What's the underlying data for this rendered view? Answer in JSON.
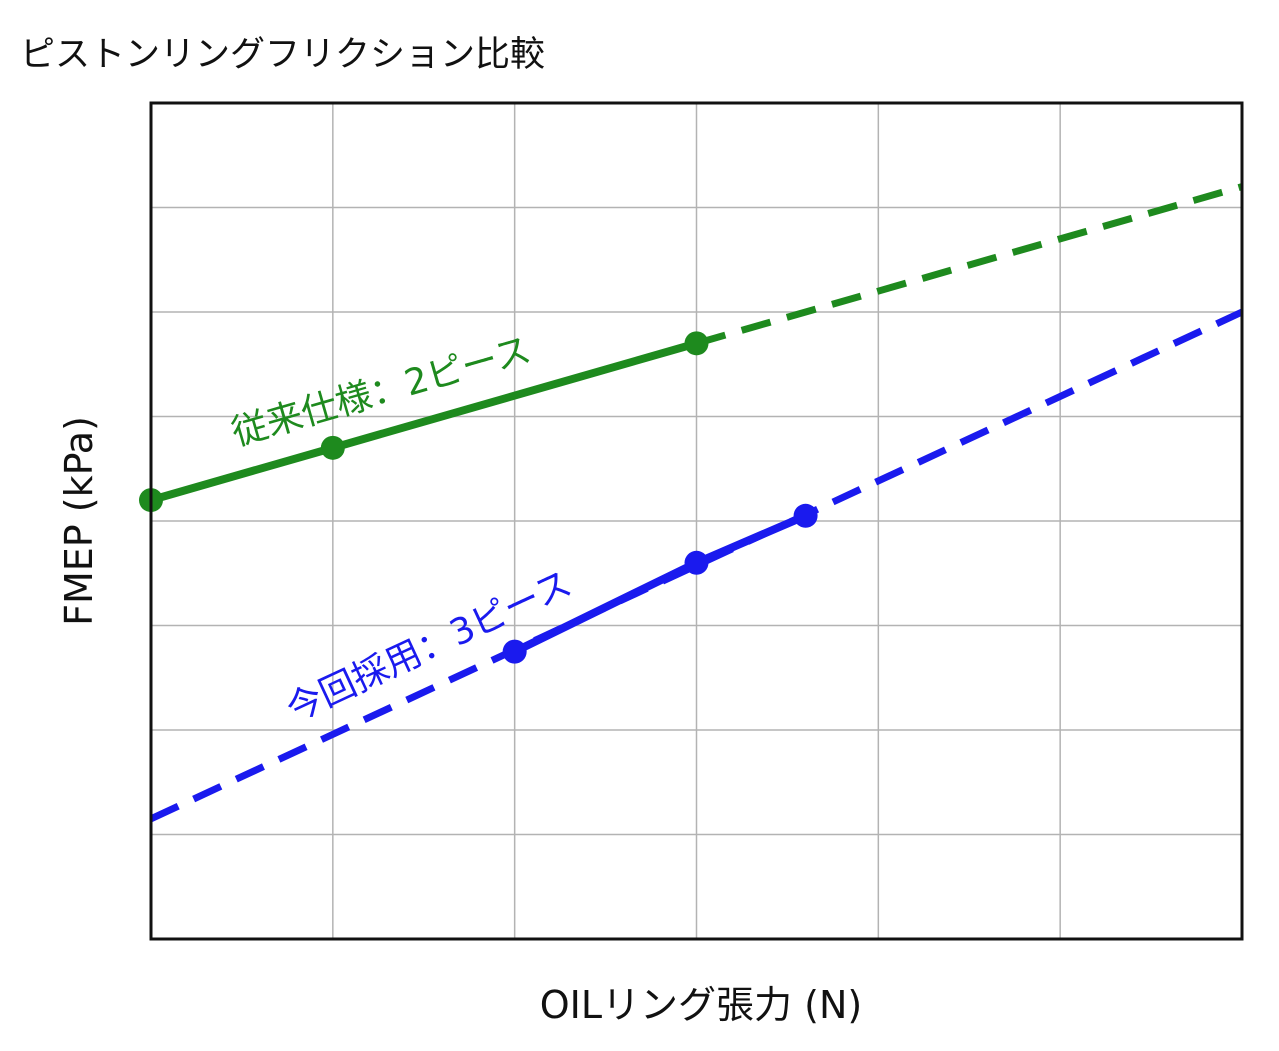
{
  "chart_data": {
    "type": "line",
    "title": "ピストンリングフリクション比較",
    "xlabel": "OILリング張力 (N)",
    "ylabel": "FMEP (kPa)",
    "xlim": [
      0,
      6
    ],
    "ylim": [
      0,
      8
    ],
    "x_ticks_labeled": false,
    "y_ticks_labeled": false,
    "grid": true,
    "legend": "none",
    "colors": {
      "green": "#1e8a1e",
      "blue": "#1a1aee",
      "grid": "#b3b3b3",
      "frame": "#111111"
    },
    "series": [
      {
        "name": "従来仕様：2ピース",
        "color": "#1e8a1e",
        "measured": {
          "x": [
            0,
            1,
            3
          ],
          "y": [
            4.2,
            4.7,
            5.7
          ]
        },
        "trend": {
          "x": [
            3,
            6
          ],
          "y": [
            5.7,
            7.2
          ]
        }
      },
      {
        "name": "今回採用：3ピース",
        "color": "#1a1aee",
        "measured": {
          "x": [
            2,
            3,
            3.6
          ],
          "y": [
            2.75,
            3.6,
            4.05
          ]
        },
        "trend": {
          "x": [
            0,
            6
          ],
          "y": [
            1.15,
            6.0
          ]
        }
      }
    ]
  }
}
